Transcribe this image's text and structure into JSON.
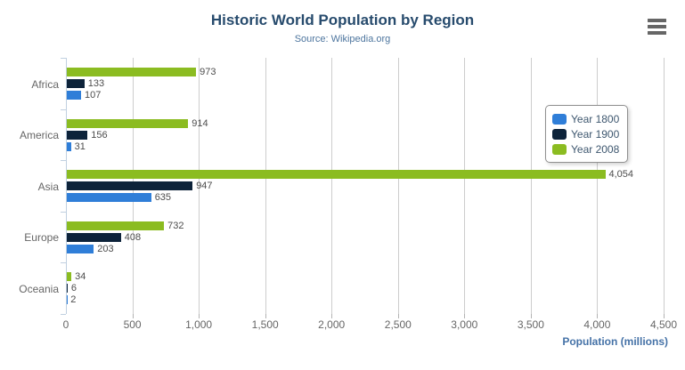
{
  "header": {
    "title": "Historic World Population by Region",
    "subtitle": "Source: Wikipedia.org"
  },
  "theme": {
    "title_color": "#274b6d",
    "subtitle_color": "#4d759e",
    "axis_title_color": "#4572a7",
    "axis_label_color": "#666666",
    "data_label_color": "#4d4d4d",
    "grid_color": "#cdcdcd",
    "axis_line_color": "#c0d0e0",
    "legend_border_color": "#909090",
    "legend_text_color": "#3e576f",
    "menu_icon_color": "#666666"
  },
  "menu": {
    "icon": "hamburger-menu"
  },
  "chart_data": {
    "type": "bar",
    "orientation": "horizontal",
    "title": "Historic World Population by Region",
    "subtitle": "Source: Wikipedia.org",
    "categories": [
      "Africa",
      "America",
      "Asia",
      "Europe",
      "Oceania"
    ],
    "series": [
      {
        "name": "Year 1800",
        "color": "#2f7ed8",
        "values": [
          107,
          31,
          635,
          203,
          2
        ]
      },
      {
        "name": "Year 1900",
        "color": "#0d233a",
        "values": [
          133,
          156,
          947,
          408,
          6
        ]
      },
      {
        "name": "Year 2008",
        "color": "#8bbc21",
        "values": [
          973,
          914,
          4054,
          732,
          34
        ]
      }
    ],
    "bar_display_order_top_to_bottom": [
      "Year 2008",
      "Year 1900",
      "Year 1800"
    ],
    "xlabel": "Population (millions)",
    "ylabel": "",
    "xlim": [
      0,
      4500
    ],
    "x_ticks": [
      0,
      500,
      1000,
      1500,
      2000,
      2500,
      3000,
      3500,
      4000,
      4500
    ],
    "grid": true,
    "data_labels": true,
    "legend_position": "right-inside"
  }
}
